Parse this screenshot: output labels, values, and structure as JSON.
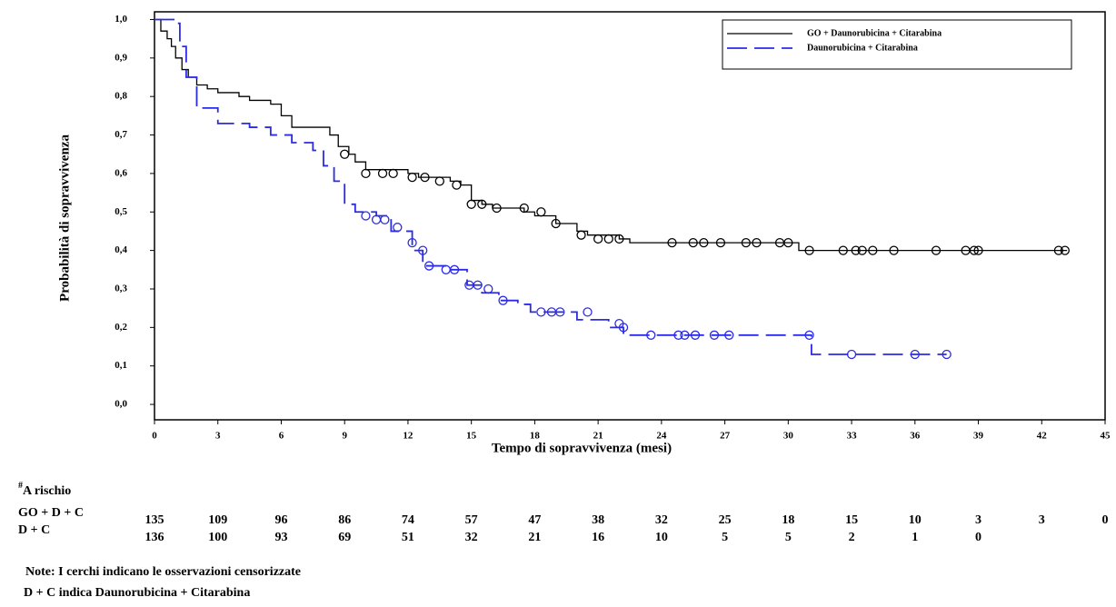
{
  "chart_data": {
    "type": "step",
    "xlabel": "Tempo di sopravvivenza (mesi)",
    "ylabel": "Probabilità di sopravvivenza",
    "xlim": [
      0,
      45
    ],
    "ylim": [
      -0.04,
      1.02
    ],
    "xticks": [
      0,
      3,
      6,
      9,
      12,
      15,
      18,
      21,
      24,
      27,
      30,
      33,
      36,
      39,
      42,
      45
    ],
    "yticks": [
      {
        "value": 0,
        "label": "0,0"
      },
      {
        "value": 0.1,
        "label": "0,1"
      },
      {
        "value": 0.2,
        "label": "0,2"
      },
      {
        "value": 0.3,
        "label": "0,3"
      },
      {
        "value": 0.4,
        "label": "0,4"
      },
      {
        "value": 0.5,
        "label": "0,5"
      },
      {
        "value": 0.6,
        "label": "0,6"
      },
      {
        "value": 0.7,
        "label": "0,7"
      },
      {
        "value": 0.8,
        "label": "0,8"
      },
      {
        "value": 0.9,
        "label": "0,9"
      },
      {
        "value": 1,
        "label": "1,0"
      }
    ],
    "legend": "top-right",
    "series": [
      {
        "name": "GO + Daunorubicina + Citarabina",
        "color": "#000000",
        "dashed": false,
        "x": [
          0,
          0.3,
          0.6,
          0.8,
          1,
          1.3,
          1.6,
          2,
          2.5,
          3,
          4,
          4.5,
          5.5,
          6,
          6.5,
          8,
          8.3,
          8.7,
          9.2,
          9.5,
          10,
          12,
          12.5,
          14,
          14.5,
          15,
          15.5,
          16,
          17.5,
          18,
          19,
          20,
          20.5,
          22,
          22.5,
          30,
          30.5,
          43.2
        ],
        "y": [
          1.0,
          0.97,
          0.95,
          0.93,
          0.9,
          0.87,
          0.85,
          0.83,
          0.82,
          0.81,
          0.8,
          0.79,
          0.78,
          0.75,
          0.72,
          0.72,
          0.7,
          0.67,
          0.65,
          0.63,
          0.61,
          0.6,
          0.59,
          0.58,
          0.57,
          0.53,
          0.52,
          0.51,
          0.5,
          0.49,
          0.47,
          0.45,
          0.44,
          0.43,
          0.42,
          0.42,
          0.4,
          0.4
        ],
        "censored_x": [
          9,
          10,
          10.8,
          11.3,
          12.2,
          12.8,
          13.5,
          14.3,
          15,
          15.5,
          16.2,
          17.5,
          18.3,
          19,
          20.2,
          21,
          21.5,
          22,
          24.5,
          25.5,
          26,
          26.8,
          28,
          28.5,
          29.6,
          30,
          31,
          32.6,
          33.2,
          33.5,
          34,
          35,
          37,
          38.4,
          38.8,
          39,
          42.8,
          43.1
        ],
        "censored_y": [
          0.65,
          0.6,
          0.6,
          0.6,
          0.59,
          0.59,
          0.58,
          0.57,
          0.52,
          0.52,
          0.51,
          0.51,
          0.5,
          0.47,
          0.44,
          0.43,
          0.43,
          0.43,
          0.42,
          0.42,
          0.42,
          0.42,
          0.42,
          0.42,
          0.42,
          0.42,
          0.4,
          0.4,
          0.4,
          0.4,
          0.4,
          0.4,
          0.4,
          0.4,
          0.4,
          0.4,
          0.4,
          0.4
        ]
      },
      {
        "name": "Daunorubicina + Citarabina",
        "color": "#2b2be6",
        "dashed": true,
        "x": [
          0,
          1,
          1.2,
          1.5,
          2,
          3,
          4.5,
          5.5,
          6.5,
          7.5,
          8,
          8.5,
          9,
          9.5,
          10.5,
          11.2,
          12.2,
          12.7,
          14,
          14.8,
          15.5,
          16.3,
          17.2,
          17.8,
          20,
          21.5,
          22.2,
          31,
          31.1,
          37.5
        ],
        "y": [
          1.0,
          0.99,
          0.93,
          0.85,
          0.77,
          0.73,
          0.72,
          0.7,
          0.68,
          0.66,
          0.62,
          0.58,
          0.52,
          0.5,
          0.49,
          0.45,
          0.4,
          0.36,
          0.35,
          0.31,
          0.29,
          0.27,
          0.26,
          0.24,
          0.22,
          0.2,
          0.18,
          0.18,
          0.13,
          0.13
        ],
        "censored_x": [
          10,
          10.5,
          10.9,
          11.5,
          12.2,
          12.7,
          13,
          13.8,
          14.2,
          14.9,
          15.3,
          15.8,
          16.5,
          18.3,
          18.8,
          19.2,
          20.5,
          22,
          22.2,
          23.5,
          24.8,
          25.1,
          25.6,
          26.5,
          27.2,
          31,
          33,
          36,
          37.5
        ],
        "censored_y": [
          0.49,
          0.48,
          0.48,
          0.46,
          0.42,
          0.4,
          0.36,
          0.35,
          0.35,
          0.31,
          0.31,
          0.3,
          0.27,
          0.24,
          0.24,
          0.24,
          0.24,
          0.21,
          0.2,
          0.18,
          0.18,
          0.18,
          0.18,
          0.18,
          0.18,
          0.18,
          0.13,
          0.13,
          0.13
        ]
      }
    ],
    "at_risk": {
      "title_mark": "#",
      "title": "A rischio",
      "rows": [
        {
          "label": "GO + D + C",
          "values": [
            135,
            109,
            96,
            86,
            74,
            57,
            47,
            38,
            32,
            25,
            18,
            15,
            10,
            3,
            3,
            0
          ]
        },
        {
          "label": "D + C",
          "values": [
            136,
            100,
            93,
            69,
            51,
            32,
            21,
            16,
            10,
            5,
            5,
            2,
            1,
            0
          ]
        }
      ]
    },
    "notes": [
      "Note:  I cerchi indicano le osservazioni censorizzate",
      "D + C indica Daunorubicina + Citarabina"
    ]
  }
}
